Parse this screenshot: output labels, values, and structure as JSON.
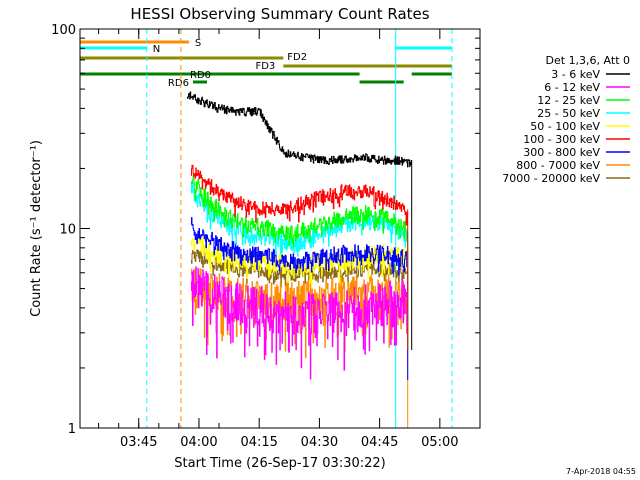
{
  "chart_data": {
    "type": "line",
    "title": "HESSI Observing Summary Count Rates",
    "xlabel": "Start Time (26-Sep-17 03:30:22)",
    "ylabel": "Count Rate (s⁻¹ detector⁻¹)",
    "y_scale": "log",
    "ylim": [
      1,
      100
    ],
    "xlim": [
      "03:30:22",
      "05:10:00"
    ],
    "x_ticks": [
      "03:45",
      "04:00",
      "04:15",
      "04:30",
      "04:45",
      "05:00"
    ],
    "y_ticks": [
      "1",
      "10",
      "100"
    ],
    "grid": false,
    "legend": {
      "placement": "right",
      "header": "Det 1,3,6, Att 0",
      "entries": [
        {
          "label": "3 - 6 keV",
          "color": "#000000"
        },
        {
          "label": "6 - 12 keV",
          "color": "#ff00ff"
        },
        {
          "label": "12 - 25 keV",
          "color": "#00ff00"
        },
        {
          "label": "25 - 50 keV",
          "color": "#00ffff"
        },
        {
          "label": "50 - 100 keV",
          "color": "#ffff00"
        },
        {
          "label": "100 - 300 keV",
          "color": "#ff0000"
        },
        {
          "label": "300 - 800 keV",
          "color": "#0000ff"
        },
        {
          "label": "800 - 7000 keV",
          "color": "#ff8c00"
        },
        {
          "label": "7000 - 20000 keV",
          "color": "#8b6914"
        }
      ]
    },
    "series": [
      {
        "name": "3 - 6 keV",
        "color": "#000000",
        "x": [
          "03:57:00",
          "04:00:00",
          "04:05:00",
          "04:10:00",
          "04:15:00",
          "04:21:00",
          "04:25:00",
          "04:30:00",
          "04:35:00",
          "04:40:00",
          "04:45:00",
          "04:50:00",
          "04:53:00"
        ],
        "y": [
          47,
          44,
          40,
          38,
          39,
          24,
          23,
          22,
          22,
          23,
          22,
          22,
          21
        ]
      },
      {
        "name": "6 - 12 keV",
        "color": "#ff00ff",
        "x": [
          "03:58:00",
          "04:02:00",
          "04:07:00",
          "04:12:00",
          "04:18:00",
          "04:24:00",
          "04:30:00",
          "04:36:00",
          "04:42:00",
          "04:47:00",
          "04:52:00"
        ],
        "y": [
          5.5,
          5.0,
          4.5,
          4.2,
          4.0,
          3.8,
          3.9,
          4.0,
          4.2,
          4.4,
          4.5
        ]
      },
      {
        "name": "12 - 25 keV",
        "color": "#00ff00",
        "x": [
          "03:58:00",
          "04:02:00",
          "04:07:00",
          "04:12:00",
          "04:18:00",
          "04:24:00",
          "04:30:00",
          "04:36:00",
          "04:42:00",
          "04:47:00",
          "04:52:00"
        ],
        "y": [
          18,
          14,
          11.5,
          10.5,
          10,
          9.5,
          10.5,
          11.5,
          12,
          11.5,
          10
        ]
      },
      {
        "name": "25 - 50 keV",
        "color": "#00ffff",
        "x": [
          "03:58:00",
          "04:02:00",
          "04:07:00",
          "04:12:00",
          "04:18:00",
          "04:24:00",
          "04:30:00",
          "04:36:00",
          "04:42:00",
          "04:47:00",
          "04:52:00"
        ],
        "y": [
          16,
          12.5,
          10.5,
          9.5,
          9,
          8.5,
          9.5,
          10.5,
          11,
          10.5,
          9
        ]
      },
      {
        "name": "50 - 100 keV",
        "color": "#ffff00",
        "x": [
          "03:58:00",
          "04:02:00",
          "04:07:00",
          "04:12:00",
          "04:18:00",
          "04:24:00",
          "04:30:00",
          "04:36:00",
          "04:42:00",
          "04:47:00",
          "04:52:00"
        ],
        "y": [
          9,
          8,
          7.2,
          7,
          6.8,
          6.6,
          6.8,
          7,
          7.2,
          7.5,
          7
        ]
      },
      {
        "name": "100 - 300 keV",
        "color": "#ff0000",
        "x": [
          "03:58:00",
          "04:02:00",
          "04:07:00",
          "04:12:00",
          "04:18:00",
          "04:24:00",
          "04:30:00",
          "04:36:00",
          "04:42:00",
          "04:47:00",
          "04:52:00"
        ],
        "y": [
          20,
          17,
          14.5,
          13,
          12.5,
          13,
          14.5,
          15.5,
          15.5,
          14,
          12.5
        ]
      },
      {
        "name": "300 - 800 keV",
        "color": "#0000ff",
        "x": [
          "03:58:00",
          "04:02:00",
          "04:07:00",
          "04:12:00",
          "04:18:00",
          "04:24:00",
          "04:30:00",
          "04:36:00",
          "04:42:00",
          "04:47:00",
          "04:52:00"
        ],
        "y": [
          10.5,
          9,
          8,
          7.5,
          7.2,
          7,
          7.2,
          7.5,
          7.6,
          7.4,
          7
        ]
      },
      {
        "name": "800 - 7000 keV",
        "color": "#ff8c00",
        "x": [
          "03:58:00",
          "04:02:00",
          "04:07:00",
          "04:12:00",
          "04:18:00",
          "04:24:00",
          "04:30:00",
          "04:36:00",
          "04:42:00",
          "04:47:00",
          "04:52:00"
        ],
        "y": [
          5.5,
          5.0,
          4.8,
          4.6,
          4.5,
          4.5,
          4.6,
          4.7,
          4.8,
          4.8,
          4.6
        ]
      },
      {
        "name": "7000 - 20000 keV",
        "color": "#8b6914",
        "x": [
          "03:58:00",
          "04:02:00",
          "04:07:00",
          "04:12:00",
          "04:18:00",
          "04:24:00",
          "04:30:00",
          "04:36:00",
          "04:42:00",
          "04:47:00",
          "04:52:00"
        ],
        "y": [
          7.5,
          7,
          6.5,
          6.2,
          6.0,
          5.9,
          6.0,
          6.2,
          6.4,
          6.3,
          6.0
        ]
      }
    ],
    "flag_bars": [
      {
        "label": "S",
        "color": "#ff8c00",
        "start": "03:30:22",
        "end": "03:57:30",
        "level": 1
      },
      {
        "label": "N",
        "color": "#00ffff",
        "start": "03:30:22",
        "end": "03:47:00",
        "level": 2
      },
      {
        "label": "",
        "color": "#00ffff",
        "start": "04:49:00",
        "end": "05:03:00",
        "level": 2
      },
      {
        "label": "FD2",
        "color": "#8b8b00",
        "start": "03:30:22",
        "end": "04:21:00",
        "level": 3
      },
      {
        "label": "FD3",
        "color": "#8b8b00",
        "start": "04:21:00",
        "end": "05:03:00",
        "level": 4
      },
      {
        "label": "RD0",
        "color": "#008000",
        "start": "03:30:22",
        "end": "04:40:00",
        "level": 5
      },
      {
        "label": "",
        "color": "#008000",
        "start": "04:53:00",
        "end": "05:03:00",
        "level": 5
      },
      {
        "label": "RD6",
        "color": "#008000",
        "start": "03:58:30",
        "end": "04:02:00",
        "level": 6
      },
      {
        "label": "",
        "color": "#008000",
        "start": "04:40:00",
        "end": "04:51:00",
        "level": 6
      }
    ],
    "vertical_markers": [
      {
        "time": "03:47:00",
        "color": "#00ffff",
        "style": "dashed"
      },
      {
        "time": "03:55:30",
        "color": "#ff8c00",
        "style": "dashed"
      },
      {
        "time": "04:49:00",
        "color": "#00ffff",
        "style": "solid"
      },
      {
        "time": "05:03:00",
        "color": "#00ffff",
        "style": "dashed"
      }
    ]
  },
  "footer": {
    "date_stamp": "7-Apr-2018 04:55"
  }
}
